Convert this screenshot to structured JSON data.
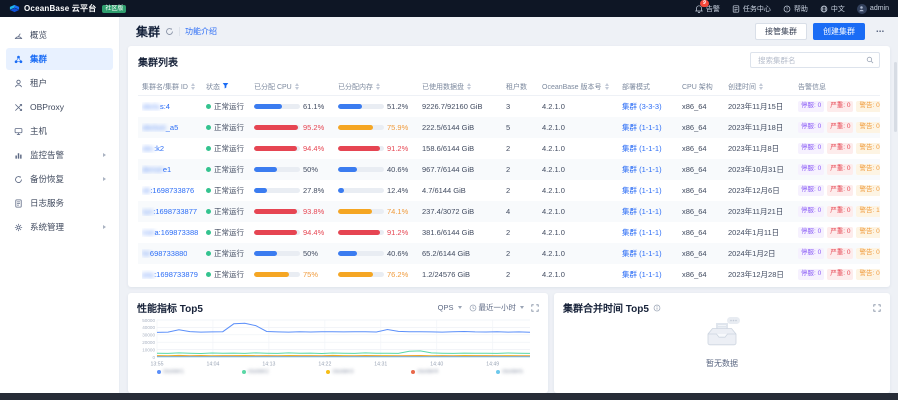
{
  "topbar": {
    "brand": "OceanBase 云平台",
    "brand_badge": "社区版",
    "items": [
      {
        "label": "告警",
        "badge": "9"
      },
      {
        "label": "任务中心"
      },
      {
        "label": "帮助"
      },
      {
        "label": "中文"
      },
      {
        "label": "admin"
      }
    ]
  },
  "sidebar": {
    "items": [
      {
        "label": "概览"
      },
      {
        "label": "集群",
        "active": true
      },
      {
        "label": "租户"
      },
      {
        "label": "OBProxy"
      },
      {
        "label": "主机"
      },
      {
        "label": "监控告警",
        "expandable": true
      },
      {
        "label": "备份恢复",
        "expandable": true
      },
      {
        "label": "日志服务"
      },
      {
        "label": "系统管理",
        "expandable": true
      }
    ]
  },
  "header": {
    "title": "集群",
    "intro_link": "功能介绍",
    "takeover_btn": "接管集群",
    "create_btn": "创建集群",
    "more_btn": "⋯"
  },
  "table_card": {
    "title": "集群列表",
    "search_placeholder": "搜索集群名",
    "alarm_labels": [
      "停服",
      "严重",
      "警告"
    ],
    "columns": [
      {
        "label": "集群名/集群 ID",
        "sort": true
      },
      {
        "label": "状态",
        "filter": true
      },
      {
        "label": "已分配 CPU",
        "sort": true
      },
      {
        "label": "已分配内存",
        "sort": true
      },
      {
        "label": "已使用数据盘",
        "sort": true
      },
      {
        "label": "租户数"
      },
      {
        "label": "OceanBase 版本号",
        "sort": true
      },
      {
        "label": "部署模式"
      },
      {
        "label": "CPU 架构"
      },
      {
        "label": "创建时间",
        "sort": true
      },
      {
        "label": "告警信息"
      }
    ],
    "rows": [
      {
        "name_hidden": "obclu",
        "name_visible": "s:4",
        "status": "正常运行",
        "cpu": "61.1%",
        "mem": "51.2%",
        "disk": "9226.7/92160 GiB",
        "tenants": "3",
        "version": "4.2.1.0",
        "deploy": "集群 (3-3-3)",
        "arch": "x86_64",
        "created": "2023年11月15日",
        "alarms": [
          "0",
          "0",
          "0"
        ]
      },
      {
        "name_hidden": "obclust",
        "name_visible": "_a5",
        "status": "正常运行",
        "cpu": "95.2%",
        "mem": "75.9%",
        "disk": "222.5/6144 GiB",
        "tenants": "5",
        "version": "4.2.1.0",
        "deploy": "集群 (1-1-1)",
        "arch": "x86_64",
        "created": "2023年11月18日",
        "alarms": [
          "0",
          "0",
          "0"
        ]
      },
      {
        "name_hidden": "obc",
        "name_visible": ":k2",
        "status": "正常运行",
        "cpu": "94.4%",
        "mem": "91.2%",
        "disk": "158.6/6144 GiB",
        "tenants": "2",
        "version": "4.2.1.0",
        "deploy": "集群 (1-1-1)",
        "arch": "x86_64",
        "created": "2023年11月8日",
        "alarms": [
          "0",
          "0",
          "0"
        ]
      },
      {
        "name_hidden": "demot",
        "name_visible": "e1",
        "status": "正常运行",
        "cpu": "50%",
        "mem": "40.6%",
        "disk": "967.7/6144 GiB",
        "tenants": "2",
        "version": "4.2.1.0",
        "deploy": "集群 (1-1-1)",
        "arch": "x86_64",
        "created": "2023年10月31日",
        "alarms": [
          "0",
          "0",
          "0"
        ]
      },
      {
        "name_hidden": "ob",
        "name_visible": ":1698733876",
        "status": "正常运行",
        "cpu": "27.8%",
        "mem": "12.4%",
        "disk": "4.7/6144 GiB",
        "tenants": "2",
        "version": "4.2.1.0",
        "deploy": "集群 (1-1-1)",
        "arch": "x86_64",
        "created": "2023年12月6日",
        "alarms": [
          "0",
          "0",
          "0"
        ]
      },
      {
        "name_hidden": "sys",
        "name_visible": ":1698733877",
        "status": "正常运行",
        "cpu": "93.8%",
        "mem": "74.1%",
        "disk": "237.4/3072 GiB",
        "tenants": "4",
        "version": "4.2.1.0",
        "deploy": "集群 (1-1-1)",
        "arch": "x86_64",
        "created": "2023年11月21日",
        "alarms": [
          "0",
          "0",
          "1"
        ]
      },
      {
        "name_hidden": "met",
        "name_visible": "a:1698733881",
        "status": "正常运行",
        "cpu": "94.4%",
        "mem": "91.2%",
        "disk": "381.6/6144 GiB",
        "tenants": "2",
        "version": "4.2.1.0",
        "deploy": "集群 (1-1-1)",
        "arch": "x86_64",
        "created": "2024年1月11日",
        "alarms": [
          "0",
          "0",
          "0"
        ]
      },
      {
        "name_hidden": "fol",
        "name_visible": "698733880",
        "status": "正常运行",
        "cpu": "50%",
        "mem": "40.6%",
        "disk": "65.2/6144 GiB",
        "tenants": "2",
        "version": "4.2.1.0",
        "deploy": "集群 (1-1-1)",
        "arch": "x86_64",
        "created": "2024年1月2日",
        "alarms": [
          "0",
          "0",
          "0"
        ]
      },
      {
        "name_hidden": "pay",
        "name_visible": ":1698733879",
        "status": "正常运行",
        "cpu": "75%",
        "mem": "76.2%",
        "disk": "1.2/24576 GiB",
        "tenants": "2",
        "version": "4.2.1.0",
        "deploy": "集群 (1-1-1)",
        "arch": "x86_64",
        "created": "2023年12月28日",
        "alarms": [
          "0",
          "0",
          "0"
        ]
      }
    ]
  },
  "perf_card": {
    "title": "性能指标 Top5",
    "metric_select": "QPS",
    "time_select": "最近一小时"
  },
  "merge_card": {
    "title": "集群合并时间 Top5",
    "empty_text": "暂无数据"
  },
  "colors": {
    "accent": "#1a6cf5",
    "topbar_bg": "#0e1625",
    "badge_green": "#2f9e6e",
    "status_green": "#34c38f",
    "bar_blue": "#3b7cf0",
    "bar_orange": "#f5a623",
    "bar_red": "#e64552"
  },
  "chart_data": {
    "type": "line",
    "title": "性能指标 Top5",
    "metric": "QPS",
    "time_range": "最近一小时",
    "x_ticks": [
      "13:55",
      "14:04",
      "14:13",
      "14:22",
      "14:31",
      "14:40",
      "14:49"
    ],
    "ylim": [
      0,
      50000
    ],
    "yticks": [
      0,
      10000,
      20000,
      30000,
      40000,
      50000
    ],
    "grid": true,
    "legend_position": "bottom",
    "legend_redacted": true,
    "series": [
      {
        "name": "",
        "color": "#5B8FF9",
        "values": [
          33200,
          33600,
          36900,
          34300,
          33700,
          33900,
          34200,
          44800,
          45600,
          42400,
          34400,
          33900,
          33700,
          34050,
          33850,
          34000,
          34100,
          33900,
          34050,
          34150,
          33800,
          37200,
          34600,
          34050,
          34250,
          33950,
          33700,
          34100,
          34500,
          33900,
          33750,
          34150,
          33600,
          33950,
          33400
        ]
      },
      {
        "name": "",
        "color": "#5AD8A6",
        "values": [
          5200,
          4800,
          5600,
          5100,
          4700,
          5400,
          5000,
          5300,
          4900,
          5600,
          5200,
          4800,
          5500,
          5000,
          5300,
          4700,
          5400,
          5100,
          4900,
          5600,
          5000,
          5200,
          4800,
          7900,
          8300,
          5600,
          5100,
          4900,
          5300,
          5000,
          5200,
          4800,
          5400,
          5100,
          4900
        ]
      },
      {
        "name": "",
        "color": "#F6BD16",
        "values": [
          1900,
          1700,
          2100,
          1800,
          2000,
          1750,
          1950,
          1850,
          2050,
          1800,
          1900,
          1700,
          2000,
          1850,
          1950,
          1800,
          2100,
          1900,
          1750,
          2000,
          1850,
          1950,
          1800,
          1900,
          2050,
          1750,
          1900,
          1800,
          2000,
          1850,
          1950,
          1700,
          1900,
          1800,
          1750
        ]
      },
      {
        "name": "",
        "color": "#E8684A",
        "values": [
          900,
          850,
          950,
          880,
          920,
          860,
          940,
          900,
          870,
          930,
          890,
          910,
          860,
          940,
          880,
          920,
          900,
          870,
          950,
          890,
          910,
          850,
          930,
          880,
          920,
          860,
          900,
          940,
          870,
          910,
          890,
          930,
          850,
          900,
          880
        ]
      },
      {
        "name": "",
        "color": "#6DC8EC",
        "values": [
          400,
          380,
          420,
          390,
          410,
          385,
          415,
          400,
          390,
          420,
          395,
          405,
          385,
          415,
          390,
          410,
          400,
          390,
          420,
          395,
          405,
          380,
          415,
          390,
          410,
          385,
          400,
          420,
          390,
          405,
          395,
          415,
          380,
          400,
          390
        ]
      }
    ]
  }
}
